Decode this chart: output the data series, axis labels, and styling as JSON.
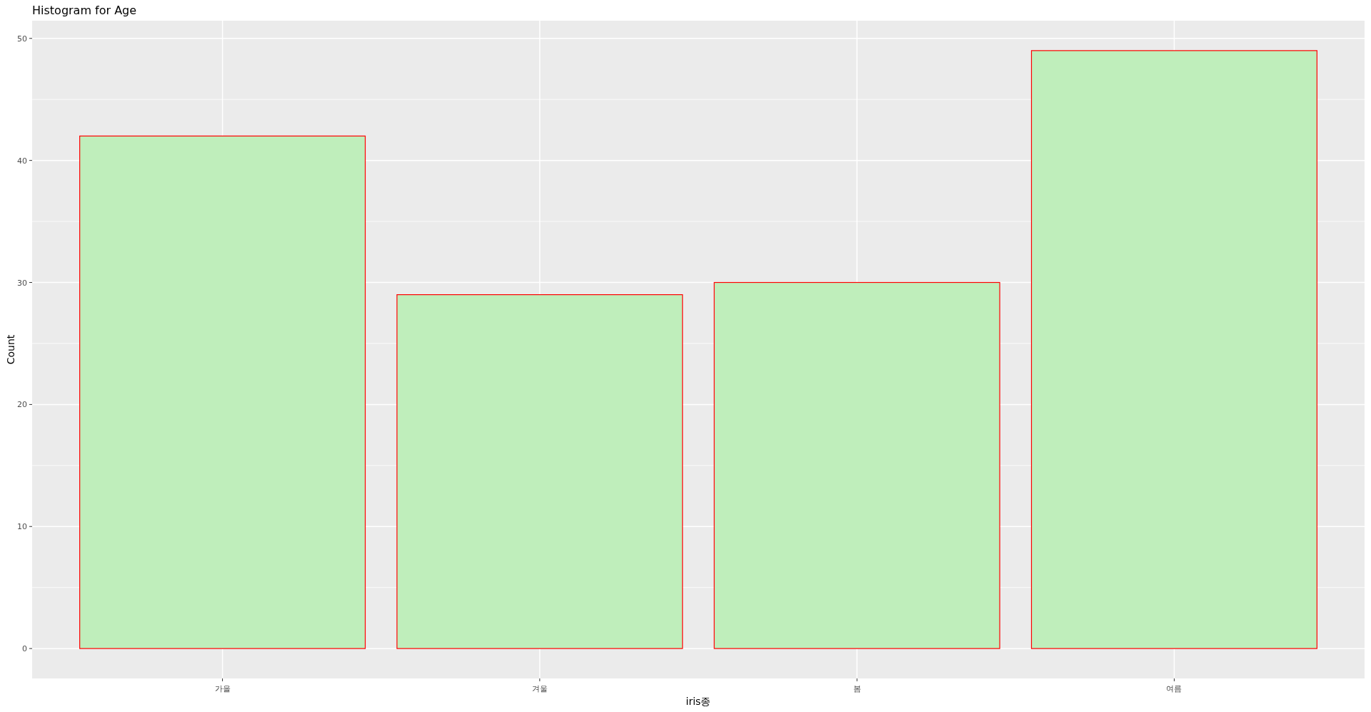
{
  "chart_data": {
    "type": "bar",
    "title": "Histogram for Age",
    "xlabel": "iris종",
    "ylabel": "Count",
    "categories": [
      "가을",
      "겨울",
      "봄",
      "여름"
    ],
    "values": [
      42,
      29,
      30,
      49
    ],
    "color": "#bfeebb",
    "ylim": [
      -2.45,
      51.45
    ],
    "yticks": [
      0,
      10,
      20,
      30,
      40,
      50
    ],
    "grid": true
  }
}
